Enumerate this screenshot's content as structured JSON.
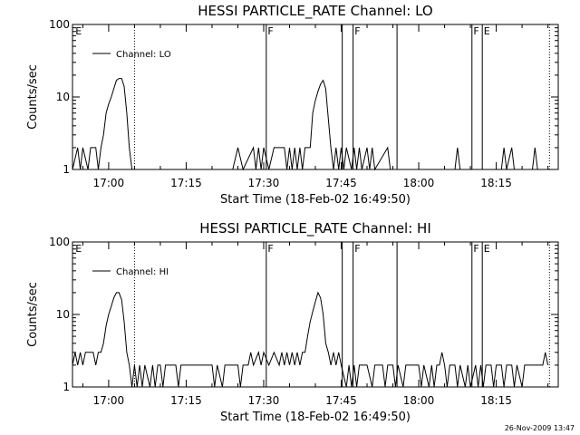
{
  "chart_data": [
    {
      "type": "line",
      "title": "HESSI PARTICLE_RATE Channel: LO",
      "xlabel": "Start Time (18-Feb-02 16:49:50)",
      "ylabel": "Counts/sec",
      "yscale": "log",
      "ylim": [
        1,
        100
      ],
      "xlim_minutes": [
        -7,
        87
      ],
      "y_tick_labels": [
        "1",
        "10",
        "100"
      ],
      "x_tick_labels": [
        "17:00",
        "17:15",
        "17:30",
        "17:45",
        "18:00",
        "18:15"
      ],
      "x_tick_minutes": [
        0,
        15,
        30,
        45,
        60,
        75
      ],
      "legend": "Channel: LO",
      "solid_lines_minutes": [
        30.5,
        45.2,
        47.3,
        55.8,
        70.3,
        72.3
      ],
      "dotted_lines_minutes": [
        5.0,
        85.3
      ],
      "markers": [
        {
          "label": "E",
          "minute": -6.6
        },
        {
          "label": "F",
          "minute": 30.6
        },
        {
          "label": "F",
          "minute": 47.4
        },
        {
          "label": "F",
          "minute": 70.4
        },
        {
          "label": "E",
          "minute": 72.4
        }
      ],
      "series": [
        {
          "name": "Channel: LO",
          "points": [
            [
              -7,
              1
            ],
            [
              -6,
              2
            ],
            [
              -5.5,
              1
            ],
            [
              -5,
              2
            ],
            [
              -4,
              1
            ],
            [
              -3.5,
              2
            ],
            [
              -2.5,
              2
            ],
            [
              -2,
              1
            ],
            [
              -1.5,
              2
            ],
            [
              -1,
              3
            ],
            [
              -0.5,
              6
            ],
            [
              0,
              8
            ],
            [
              0.5,
              10
            ],
            [
              1,
              13
            ],
            [
              1.5,
              17
            ],
            [
              2,
              18
            ],
            [
              2.5,
              18
            ],
            [
              3,
              14
            ],
            [
              3.5,
              6
            ],
            [
              4,
              2
            ],
            [
              4.5,
              1
            ],
            [
              24,
              1
            ],
            [
              25,
              2
            ],
            [
              26,
              1
            ],
            [
              28,
              2
            ],
            [
              28.5,
              1
            ],
            [
              29,
              2
            ],
            [
              29.5,
              1
            ],
            [
              30,
              2
            ],
            [
              31,
              1
            ],
            [
              32,
              2
            ],
            [
              34,
              2
            ],
            [
              34.5,
              1
            ],
            [
              35,
              2
            ],
            [
              35.5,
              1
            ],
            [
              36,
              2
            ],
            [
              36.5,
              1
            ],
            [
              37,
              2
            ],
            [
              37.5,
              1
            ],
            [
              38,
              2
            ],
            [
              39,
              2
            ],
            [
              39.5,
              6
            ],
            [
              40,
              9
            ],
            [
              40.5,
              12
            ],
            [
              41,
              15
            ],
            [
              41.5,
              17
            ],
            [
              42,
              13
            ],
            [
              42.5,
              5
            ],
            [
              43,
              2
            ],
            [
              43.5,
              1
            ],
            [
              44,
              2
            ],
            [
              44.5,
              1
            ],
            [
              45,
              2
            ],
            [
              45.5,
              1
            ],
            [
              46,
              2
            ],
            [
              47,
              1
            ],
            [
              47.5,
              2
            ],
            [
              48,
              1
            ],
            [
              48.5,
              2
            ],
            [
              49,
              1
            ],
            [
              50,
              2
            ],
            [
              50.5,
              1
            ],
            [
              51,
              2
            ],
            [
              51.5,
              1
            ],
            [
              54,
              2
            ],
            [
              54.5,
              1
            ],
            [
              67,
              1
            ],
            [
              67.5,
              2
            ],
            [
              68,
              1
            ],
            [
              76,
              1
            ],
            [
              76.5,
              2
            ],
            [
              77,
              1
            ],
            [
              78,
              2
            ],
            [
              78.5,
              1
            ],
            [
              82,
              1
            ],
            [
              82.5,
              2
            ],
            [
              83,
              1
            ]
          ]
        }
      ]
    },
    {
      "type": "line",
      "title": "HESSI PARTICLE_RATE Channel: HI",
      "xlabel": "Start Time (18-Feb-02 16:49:50)",
      "ylabel": "Counts/sec",
      "yscale": "log",
      "ylim": [
        1,
        100
      ],
      "xlim_minutes": [
        -7,
        87
      ],
      "y_tick_labels": [
        "1",
        "10",
        "100"
      ],
      "x_tick_labels": [
        "17:00",
        "17:15",
        "17:30",
        "17:45",
        "18:00",
        "18:15"
      ],
      "x_tick_minutes": [
        0,
        15,
        30,
        45,
        60,
        75
      ],
      "legend": "Channel: HI",
      "solid_lines_minutes": [
        30.5,
        45.2,
        47.3,
        55.8,
        70.3,
        72.3
      ],
      "dotted_lines_minutes": [
        5.0,
        85.3
      ],
      "markers": [
        {
          "label": "E",
          "minute": -6.6
        },
        {
          "label": "F",
          "minute": 30.6
        },
        {
          "label": "F",
          "minute": 47.4
        },
        {
          "label": "F",
          "minute": 70.4
        },
        {
          "label": "E",
          "minute": 72.4
        }
      ],
      "series": [
        {
          "name": "Channel: HI",
          "points": [
            [
              -7,
              2
            ],
            [
              -6.5,
              3
            ],
            [
              -6,
              2
            ],
            [
              -5.5,
              3
            ],
            [
              -5,
              2
            ],
            [
              -4.5,
              3
            ],
            [
              -4,
              3
            ],
            [
              -3,
              3
            ],
            [
              -2.5,
              2
            ],
            [
              -2,
              3
            ],
            [
              -1.5,
              3
            ],
            [
              -1,
              4
            ],
            [
              -0.5,
              7
            ],
            [
              0,
              10
            ],
            [
              0.5,
              13
            ],
            [
              1,
              17
            ],
            [
              1.5,
              20
            ],
            [
              2,
              20
            ],
            [
              2.5,
              16
            ],
            [
              3,
              8
            ],
            [
              3.5,
              3
            ],
            [
              4,
              2
            ],
            [
              4.5,
              1
            ],
            [
              5,
              2
            ],
            [
              5.5,
              1
            ],
            [
              6,
              2
            ],
            [
              6.5,
              1
            ],
            [
              7,
              2
            ],
            [
              8,
              1
            ],
            [
              8.5,
              2
            ],
            [
              9,
              1
            ],
            [
              9.5,
              2
            ],
            [
              10,
              2
            ],
            [
              10.5,
              1
            ],
            [
              11,
              2
            ],
            [
              13,
              2
            ],
            [
              13.5,
              1
            ],
            [
              14,
              2
            ],
            [
              20,
              2
            ],
            [
              20.5,
              1
            ],
            [
              21,
              2
            ],
            [
              22,
              1
            ],
            [
              22.5,
              2
            ],
            [
              25,
              2
            ],
            [
              25.5,
              1
            ],
            [
              26,
              2
            ],
            [
              27,
              2
            ],
            [
              27.5,
              3
            ],
            [
              28,
              2
            ],
            [
              29,
              3
            ],
            [
              29.5,
              2
            ],
            [
              30,
              3
            ],
            [
              31,
              2
            ],
            [
              32,
              3
            ],
            [
              33,
              2
            ],
            [
              33.5,
              3
            ],
            [
              34,
              2
            ],
            [
              34.5,
              3
            ],
            [
              35,
              2
            ],
            [
              35.5,
              3
            ],
            [
              36,
              2
            ],
            [
              36.5,
              3
            ],
            [
              37,
              2
            ],
            [
              37.5,
              3
            ],
            [
              38,
              3
            ],
            [
              38.5,
              5
            ],
            [
              39,
              8
            ],
            [
              39.5,
              11
            ],
            [
              40,
              15
            ],
            [
              40.5,
              20
            ],
            [
              41,
              17
            ],
            [
              41.5,
              10
            ],
            [
              42,
              4
            ],
            [
              42.5,
              3
            ],
            [
              43,
              2
            ],
            [
              43.5,
              3
            ],
            [
              44,
              2
            ],
            [
              44.5,
              3
            ],
            [
              45,
              2
            ],
            [
              46,
              1
            ],
            [
              46.5,
              2
            ],
            [
              47,
              1
            ],
            [
              47.5,
              2
            ],
            [
              48,
              1
            ],
            [
              48.5,
              2
            ],
            [
              50,
              2
            ],
            [
              51,
              1
            ],
            [
              51.5,
              2
            ],
            [
              53,
              2
            ],
            [
              53.5,
              1
            ],
            [
              54,
              2
            ],
            [
              55,
              2
            ],
            [
              55.5,
              1
            ],
            [
              56,
              2
            ],
            [
              57,
              1
            ],
            [
              57.5,
              2
            ],
            [
              60,
              2
            ],
            [
              60.5,
              1
            ],
            [
              61,
              2
            ],
            [
              62,
              1
            ],
            [
              62.5,
              2
            ],
            [
              63,
              1
            ],
            [
              63.5,
              2
            ],
            [
              64,
              2
            ],
            [
              64.5,
              3
            ],
            [
              65,
              2
            ],
            [
              65.5,
              1
            ],
            [
              66,
              2
            ],
            [
              67,
              2
            ],
            [
              67.5,
              1
            ],
            [
              68,
              2
            ],
            [
              69,
              1
            ],
            [
              69.5,
              2
            ],
            [
              70,
              1
            ],
            [
              71,
              2
            ],
            [
              71.5,
              1
            ],
            [
              72,
              2
            ],
            [
              72.5,
              1
            ],
            [
              73,
              2
            ],
            [
              74,
              2
            ],
            [
              74.5,
              1
            ],
            [
              75,
              2
            ],
            [
              76,
              2
            ],
            [
              76.5,
              1
            ],
            [
              77,
              2
            ],
            [
              78,
              2
            ],
            [
              78.5,
              1
            ],
            [
              79,
              2
            ],
            [
              80,
              1
            ],
            [
              80.5,
              2
            ],
            [
              84,
              2
            ],
            [
              84.5,
              3
            ],
            [
              85,
              2
            ]
          ]
        }
      ]
    }
  ],
  "footer": {
    "timestamp": "26-Nov-2009 13:47"
  }
}
